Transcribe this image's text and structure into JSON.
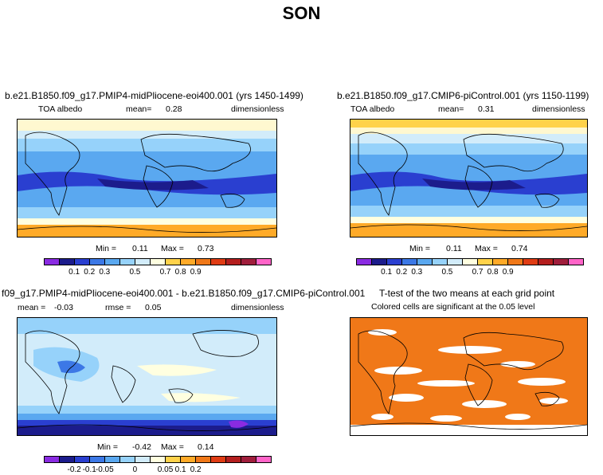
{
  "title": "SON",
  "panels": {
    "top_left": {
      "title": "b.e21.B1850.f09_g17.PMIP4-midPliocene-eoi400.001 (yrs 1450-1499)",
      "variable": "TOA albedo",
      "stat_label": "mean=",
      "stat_value": "0.28",
      "units": "dimensionless",
      "min_label": "Min =",
      "min": "0.11",
      "max_label": "Max =",
      "max": "0.73"
    },
    "top_right": {
      "title": "b.e21.B1850.f09_g17.CMIP6-piControl.001 (yrs 1150-1199)",
      "variable": "TOA albedo",
      "stat_label": "mean=",
      "stat_value": "0.31",
      "units": "dimensionless",
      "min_label": "Min =",
      "min": "0.11",
      "max_label": "Max =",
      "max": "0.74"
    },
    "bottom_left": {
      "title": "f09_g17.PMIP4-midPliocene-eoi400.001 - b.e21.B1850.f09_g17.CMIP6-piControl.001",
      "mean_label": "mean =",
      "mean": "-0.03",
      "rmse_label": "rmse =",
      "rmse": "0.05",
      "units": "dimensionless",
      "min_label": "Min =",
      "min": "-0.42",
      "max_label": "Max =",
      "max": "0.14"
    },
    "bottom_right": {
      "title": "T-test of the two means at each grid point",
      "subtitle": "Colored cells are significant at the 0.05 level"
    }
  },
  "colorbars": {
    "albedo": {
      "colors": [
        "#8a2be2",
        "#1c1c8c",
        "#2a3fd0",
        "#3c78e6",
        "#5aa8f0",
        "#96d2fa",
        "#d2ecfa",
        "#ffffe0",
        "#ffd24a",
        "#ffaa28",
        "#f07818",
        "#e03c14",
        "#b41e1e",
        "#a01e3c",
        "#ff64c8"
      ],
      "labels": [
        "0.1",
        "0.2",
        "0.3",
        "0.5",
        "0.7",
        "0.8",
        "0.9"
      ]
    },
    "difference": {
      "colors": [
        "#8a2be2",
        "#1c1c8c",
        "#2a3fd0",
        "#3c78e6",
        "#5aa8f0",
        "#96d2fa",
        "#d2ecfa",
        "#ffffe0",
        "#ffd24a",
        "#ffaa28",
        "#f07818",
        "#e03c14",
        "#b41e1e",
        "#a01e3c",
        "#ff64c8"
      ],
      "labels": [
        "-0.2",
        "-0.1",
        "-0.05",
        "0",
        "0.05",
        "0.1",
        "0.2"
      ]
    }
  }
}
